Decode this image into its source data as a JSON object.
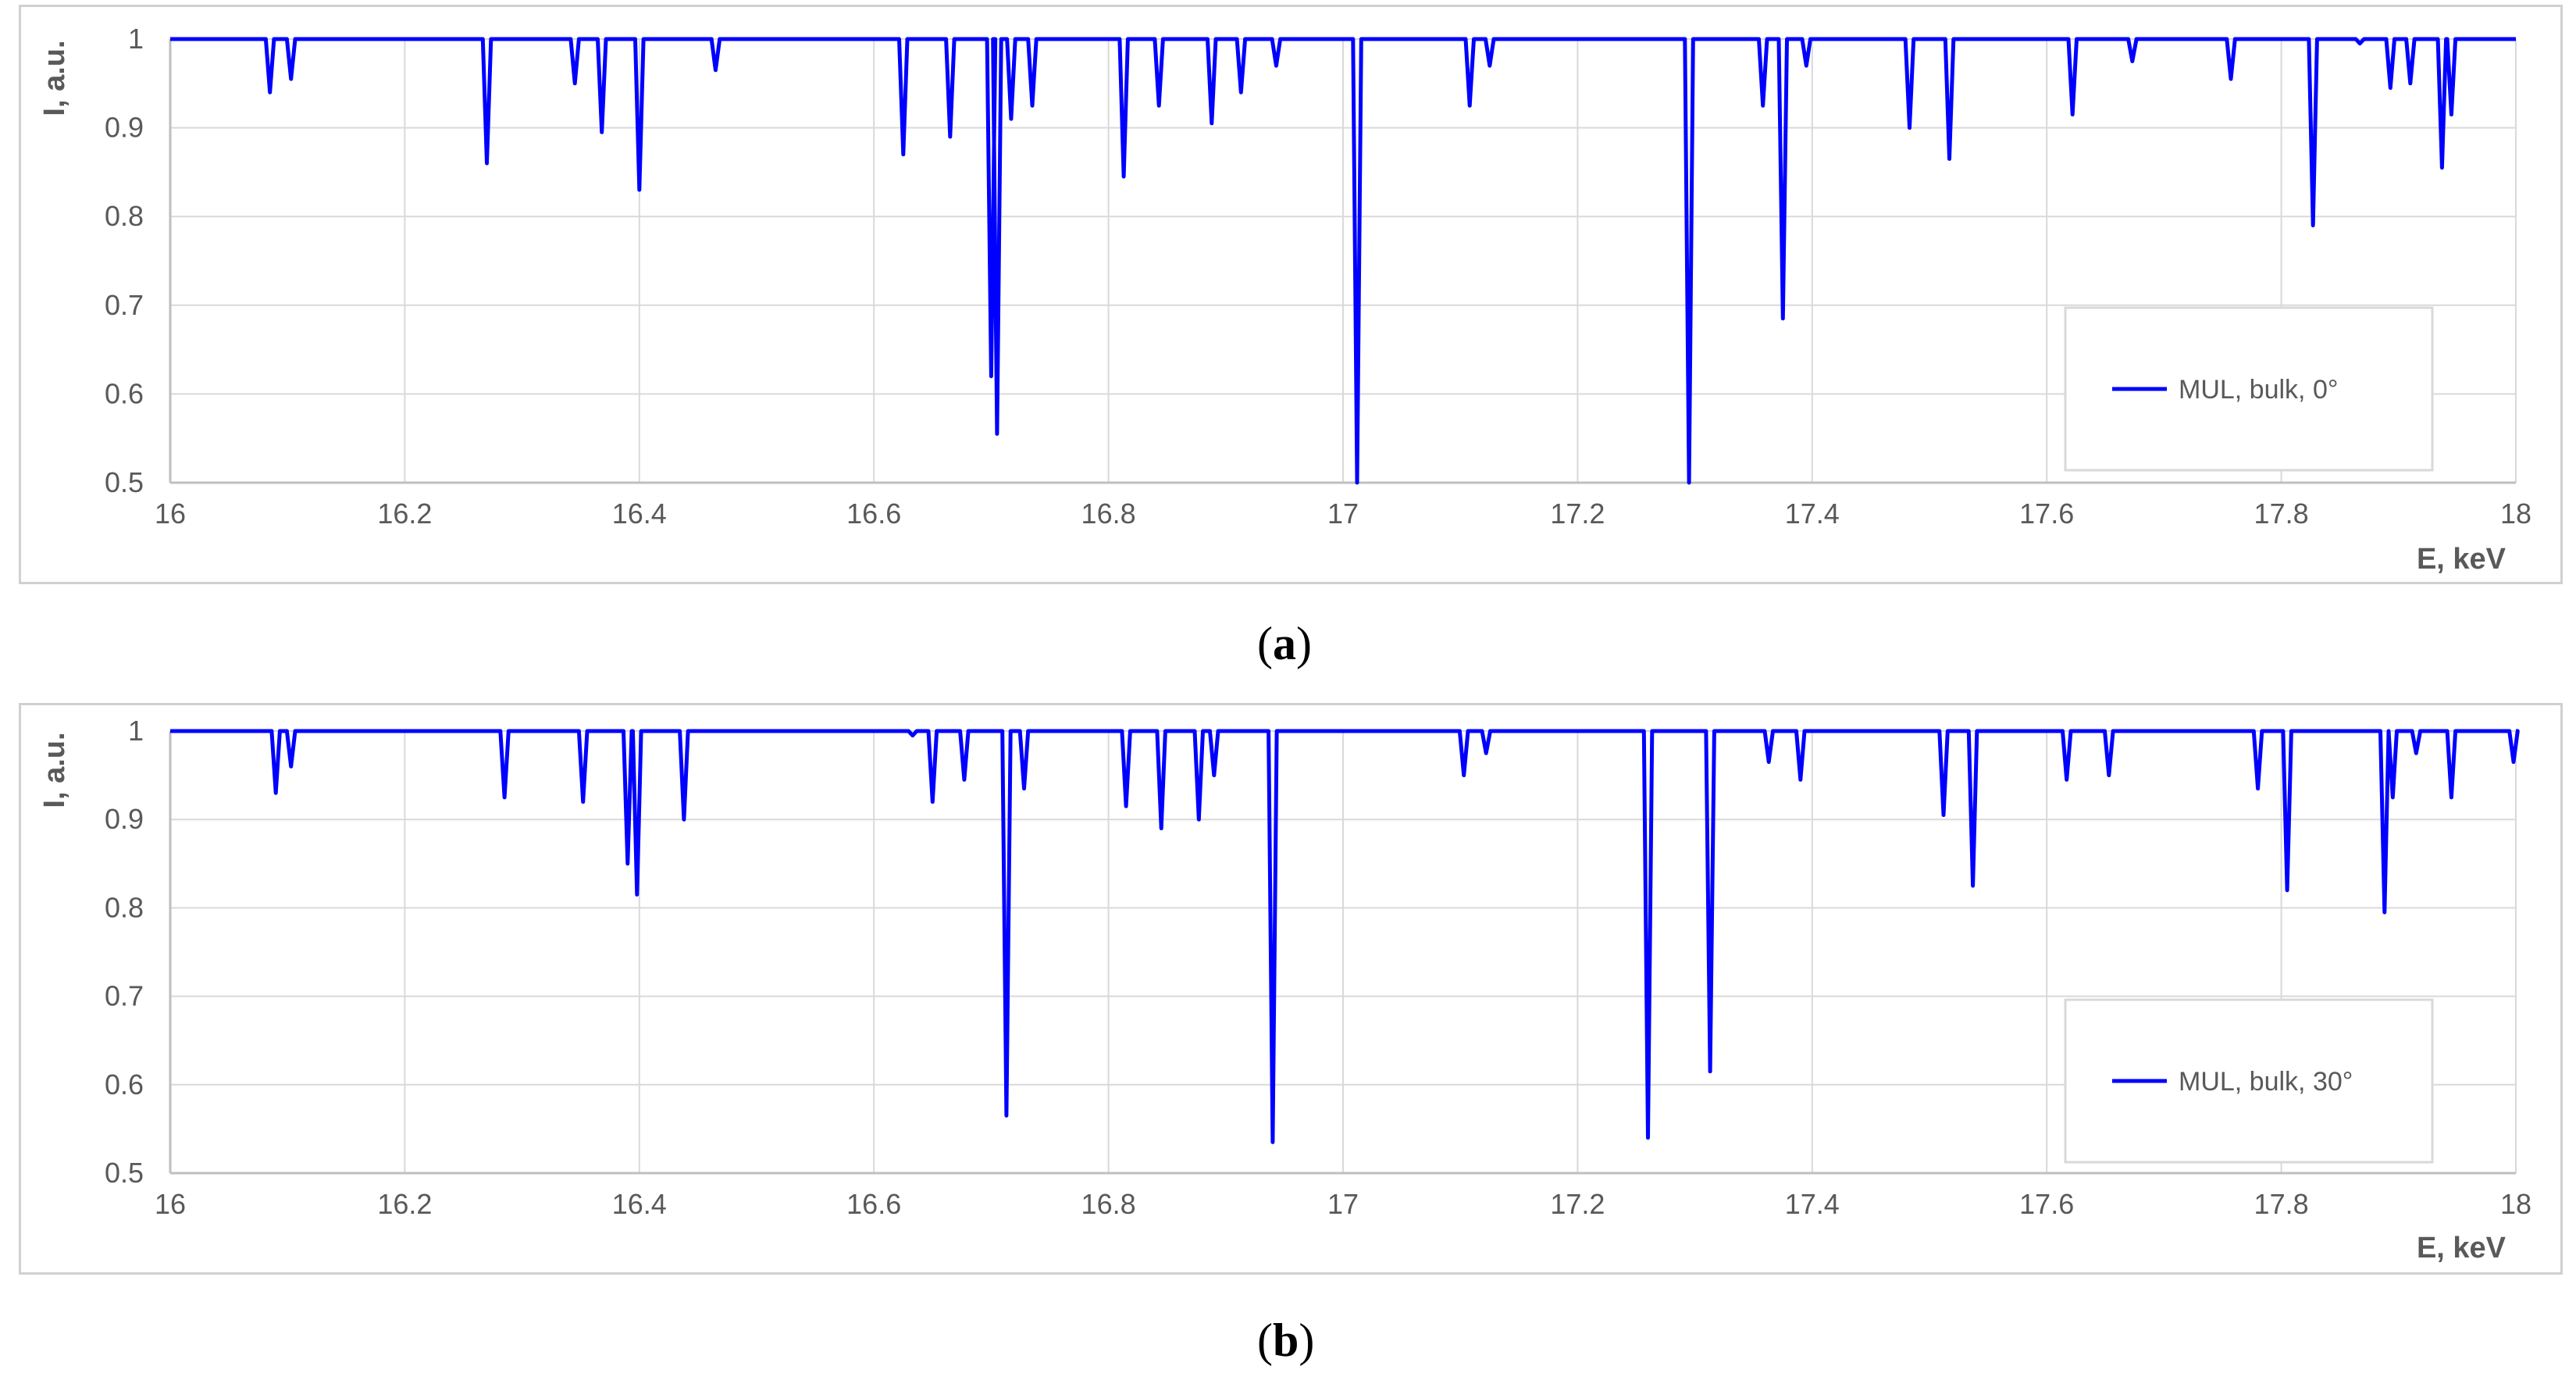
{
  "chart_data": [
    {
      "type": "line",
      "panel_label": "a",
      "xlabel": "E, keV",
      "ylabel": "I, a.u.",
      "xlim": [
        16,
        18
      ],
      "ylim": [
        0.5,
        1
      ],
      "x_ticks": [
        "16",
        "16.2",
        "16.4",
        "16.6",
        "16.8",
        "17",
        "17.2",
        "17.4",
        "17.6",
        "17.8",
        "18"
      ],
      "y_ticks": [
        "0.5",
        "0.6",
        "0.7",
        "0.8",
        "0.9",
        "1"
      ],
      "grid": true,
      "legend_position": "bottom-right",
      "baseline": 1.0,
      "series": [
        {
          "name": "MUL, bulk, 0°",
          "color": "#0000ff",
          "dips": [
            {
              "x": 16.085,
              "y": 0.94
            },
            {
              "x": 16.103,
              "y": 0.955
            },
            {
              "x": 16.27,
              "y": 0.86
            },
            {
              "x": 16.345,
              "y": 0.95
            },
            {
              "x": 16.368,
              "y": 0.895
            },
            {
              "x": 16.4,
              "y": 0.83
            },
            {
              "x": 16.465,
              "y": 0.965
            },
            {
              "x": 16.625,
              "y": 0.87
            },
            {
              "x": 16.665,
              "y": 0.89
            },
            {
              "x": 16.7,
              "y": 0.62
            },
            {
              "x": 16.705,
              "y": 0.555
            },
            {
              "x": 16.717,
              "y": 0.91
            },
            {
              "x": 16.735,
              "y": 0.925
            },
            {
              "x": 16.813,
              "y": 0.845
            },
            {
              "x": 16.843,
              "y": 0.925
            },
            {
              "x": 16.888,
              "y": 0.905
            },
            {
              "x": 16.913,
              "y": 0.94
            },
            {
              "x": 16.943,
              "y": 0.97
            },
            {
              "x": 17.012,
              "y": 0.5
            },
            {
              "x": 17.108,
              "y": 0.925
            },
            {
              "x": 17.125,
              "y": 0.97
            },
            {
              "x": 17.295,
              "y": 0.5
            },
            {
              "x": 17.358,
              "y": 0.925
            },
            {
              "x": 17.375,
              "y": 0.685
            },
            {
              "x": 17.395,
              "y": 0.97
            },
            {
              "x": 17.483,
              "y": 0.9
            },
            {
              "x": 17.517,
              "y": 0.865
            },
            {
              "x": 17.622,
              "y": 0.915
            },
            {
              "x": 17.673,
              "y": 0.975
            },
            {
              "x": 17.757,
              "y": 0.955
            },
            {
              "x": 17.827,
              "y": 0.79
            },
            {
              "x": 17.867,
              "y": 0.995
            },
            {
              "x": 17.893,
              "y": 0.945
            },
            {
              "x": 17.91,
              "y": 0.95
            },
            {
              "x": 17.937,
              "y": 0.855
            },
            {
              "x": 17.945,
              "y": 0.915
            }
          ]
        }
      ]
    },
    {
      "type": "line",
      "panel_label": "b",
      "xlabel": "E, keV",
      "ylabel": "I, a.u.",
      "xlim": [
        16,
        18
      ],
      "ylim": [
        0.5,
        1
      ],
      "x_ticks": [
        "16",
        "16.2",
        "16.4",
        "16.6",
        "16.8",
        "17",
        "17.2",
        "17.4",
        "17.6",
        "17.8",
        "18"
      ],
      "y_ticks": [
        "0.5",
        "0.6",
        "0.7",
        "0.8",
        "0.9",
        "1"
      ],
      "grid": true,
      "legend_position": "bottom-right",
      "baseline": 1.0,
      "series": [
        {
          "name": "MUL, bulk, 30°",
          "color": "#0000ff",
          "dips": [
            {
              "x": 16.09,
              "y": 0.93
            },
            {
              "x": 16.103,
              "y": 0.96
            },
            {
              "x": 16.285,
              "y": 0.925
            },
            {
              "x": 16.352,
              "y": 0.92
            },
            {
              "x": 16.39,
              "y": 0.85
            },
            {
              "x": 16.398,
              "y": 0.815
            },
            {
              "x": 16.438,
              "y": 0.9
            },
            {
              "x": 16.633,
              "y": 0.995
            },
            {
              "x": 16.65,
              "y": 0.92
            },
            {
              "x": 16.677,
              "y": 0.945
            },
            {
              "x": 16.713,
              "y": 0.565
            },
            {
              "x": 16.728,
              "y": 0.935
            },
            {
              "x": 16.815,
              "y": 0.915
            },
            {
              "x": 16.845,
              "y": 0.89
            },
            {
              "x": 16.877,
              "y": 0.9
            },
            {
              "x": 16.89,
              "y": 0.95
            },
            {
              "x": 16.94,
              "y": 0.535
            },
            {
              "x": 17.103,
              "y": 0.95
            },
            {
              "x": 17.122,
              "y": 0.975
            },
            {
              "x": 17.26,
              "y": 0.54
            },
            {
              "x": 17.313,
              "y": 0.615
            },
            {
              "x": 17.363,
              "y": 0.965
            },
            {
              "x": 17.39,
              "y": 0.945
            },
            {
              "x": 17.512,
              "y": 0.905
            },
            {
              "x": 17.537,
              "y": 0.825
            },
            {
              "x": 17.617,
              "y": 0.945
            },
            {
              "x": 17.653,
              "y": 0.95
            },
            {
              "x": 17.78,
              "y": 0.935
            },
            {
              "x": 17.805,
              "y": 0.82
            },
            {
              "x": 17.888,
              "y": 0.795
            },
            {
              "x": 17.895,
              "y": 0.925
            },
            {
              "x": 17.915,
              "y": 0.975
            },
            {
              "x": 17.945,
              "y": 0.925
            },
            {
              "x": 17.998,
              "y": 0.965
            }
          ]
        }
      ]
    }
  ]
}
